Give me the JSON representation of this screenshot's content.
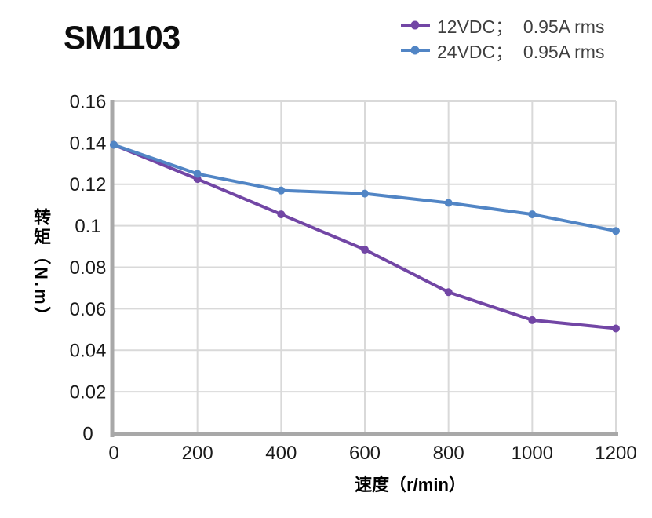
{
  "title": "SM1103",
  "legend": {
    "items": [
      {
        "label": "12VDC；  0.95A rms",
        "color": "#7246A5"
      },
      {
        "label": "24VDC；  0.95A rms",
        "color": "#5185C5"
      }
    ]
  },
  "chart_data": {
    "type": "line",
    "title": "SM1103",
    "xlabel": "速度（r/min）",
    "ylabel": "转矩（N.m）",
    "x": [
      0,
      200,
      400,
      600,
      800,
      1000,
      1200
    ],
    "series": [
      {
        "name": "12VDC；0.95A rms",
        "color": "#7246A5",
        "values": [
          0.139,
          0.1225,
          0.1055,
          0.0885,
          0.068,
          0.0545,
          0.0505
        ]
      },
      {
        "name": "24VDC；0.95A rms",
        "color": "#5185C5",
        "values": [
          0.139,
          0.125,
          0.117,
          0.1155,
          0.111,
          0.1055,
          0.0975
        ]
      }
    ],
    "xlim": [
      0,
      1200
    ],
    "ylim": [
      0,
      0.16
    ],
    "x_tick_labels": [
      "0",
      "200",
      "400",
      "600",
      "800",
      "1000",
      "1200"
    ],
    "y_tick_labels": [
      "0",
      "0.02",
      "0.04",
      "0.06",
      "0.08",
      "0.1",
      "0.12",
      "0.14",
      "0.16"
    ],
    "grid": true,
    "legend_position": "top-right",
    "colors": {
      "grid": "#D9D9D9",
      "axis": "#A8A8A8",
      "tick_text": "#1A1A1A"
    }
  }
}
